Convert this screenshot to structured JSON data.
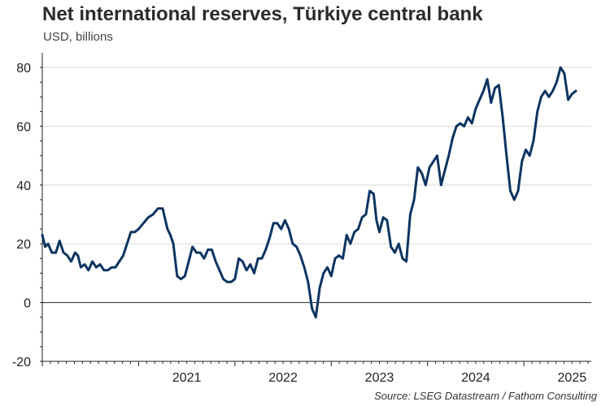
{
  "header": {
    "title": "Net international reserves, Türkiye central bank",
    "subtitle": "USD, billions"
  },
  "footer": {
    "source": "Source: LSEG Datastream / Fathom Consulting"
  },
  "chart_data": {
    "type": "line",
    "title": "Net international reserves, Türkiye central bank",
    "subtitle": "USD, billions",
    "xlabel": "",
    "ylabel": "",
    "ylim": [
      -20,
      85
    ],
    "yticks": [
      -20,
      0,
      20,
      40,
      60,
      80
    ],
    "xlim": [
      2020.0,
      2025.7
    ],
    "xticks": [
      {
        "label": "2021",
        "value": 2021.0
      },
      {
        "label": "2022",
        "value": 2022.0
      },
      {
        "label": "2023",
        "value": 2023.0
      },
      {
        "label": "2024",
        "value": 2024.0
      },
      {
        "label": "2025",
        "value": 2025.0
      }
    ],
    "grid": "horizontal",
    "legend": "none",
    "line_color": "#0d3461",
    "series": [
      {
        "x": [
          2020.0,
          2020.03,
          2020.06,
          2020.1,
          2020.14,
          2020.18,
          2020.22,
          2020.26,
          2020.3,
          2020.34,
          2020.37,
          2020.4,
          2020.44,
          2020.48,
          2020.52,
          2020.56,
          2020.6,
          2020.64,
          2020.68,
          2020.72,
          2020.76,
          2020.8,
          2020.84,
          2020.88,
          2020.92,
          2020.96,
          2021.0,
          2021.05,
          2021.1,
          2021.15,
          2021.2,
          2021.25,
          2021.3,
          2021.33,
          2021.36,
          2021.4,
          2021.44,
          2021.48,
          2021.52,
          2021.56,
          2021.6,
          2021.64,
          2021.68,
          2021.72,
          2021.76,
          2021.8,
          2021.84,
          2021.88,
          2021.92,
          2021.96,
          2022.0,
          2022.04,
          2022.08,
          2022.12,
          2022.16,
          2022.2,
          2022.24,
          2022.28,
          2022.32,
          2022.36,
          2022.4,
          2022.44,
          2022.48,
          2022.52,
          2022.56,
          2022.6,
          2022.64,
          2022.68,
          2022.72,
          2022.76,
          2022.8,
          2022.84,
          2022.88,
          2022.92,
          2022.96,
          2023.0,
          2023.04,
          2023.08,
          2023.12,
          2023.16,
          2023.2,
          2023.24,
          2023.28,
          2023.32,
          2023.36,
          2023.4,
          2023.44,
          2023.47,
          2023.5,
          2023.54,
          2023.58,
          2023.62,
          2023.66,
          2023.7,
          2023.74,
          2023.78,
          2023.82,
          2023.86,
          2023.9,
          2023.94,
          2023.98,
          2024.02,
          2024.06,
          2024.1,
          2024.14,
          2024.18,
          2024.22,
          2024.26,
          2024.3,
          2024.34,
          2024.38,
          2024.42,
          2024.46,
          2024.5,
          2024.54,
          2024.58,
          2024.62,
          2024.66,
          2024.7,
          2024.74,
          2024.78,
          2024.82,
          2024.86,
          2024.9,
          2024.94,
          2024.98,
          2025.02,
          2025.06,
          2025.1,
          2025.14,
          2025.18,
          2025.22,
          2025.26,
          2025.3,
          2025.34,
          2025.38,
          2025.42,
          2025.46,
          2025.5,
          2025.54
        ],
        "values": [
          23,
          19,
          20,
          17,
          17,
          21,
          17,
          16,
          14,
          17,
          16,
          12,
          13,
          11,
          14,
          12,
          13,
          11,
          11,
          12,
          12,
          14,
          16,
          20,
          24,
          24,
          25,
          27,
          29,
          30,
          32,
          32,
          25,
          23,
          20,
          9,
          8,
          9,
          14,
          19,
          17,
          17,
          15,
          18,
          18,
          14,
          11,
          8,
          7,
          7,
          8,
          15,
          14,
          11,
          13,
          10,
          15,
          15,
          18,
          22,
          27,
          27,
          25,
          28,
          25,
          20,
          19,
          16,
          12,
          7,
          -2,
          -5,
          5,
          10,
          12,
          9,
          15,
          16,
          15,
          23,
          20,
          24,
          25,
          29,
          30,
          38,
          37,
          28,
          24,
          29,
          28,
          19,
          17,
          20,
          15,
          14,
          30,
          35,
          46,
          44,
          40,
          46,
          48,
          50,
          40,
          45,
          50,
          56,
          60,
          61,
          60,
          63,
          61,
          66,
          69,
          72,
          76,
          68,
          73,
          74,
          63,
          50,
          38,
          35,
          38,
          48,
          52,
          50,
          55,
          65,
          70,
          72,
          70,
          72,
          75,
          80,
          78,
          69,
          71,
          72
        ]
      }
    ]
  }
}
